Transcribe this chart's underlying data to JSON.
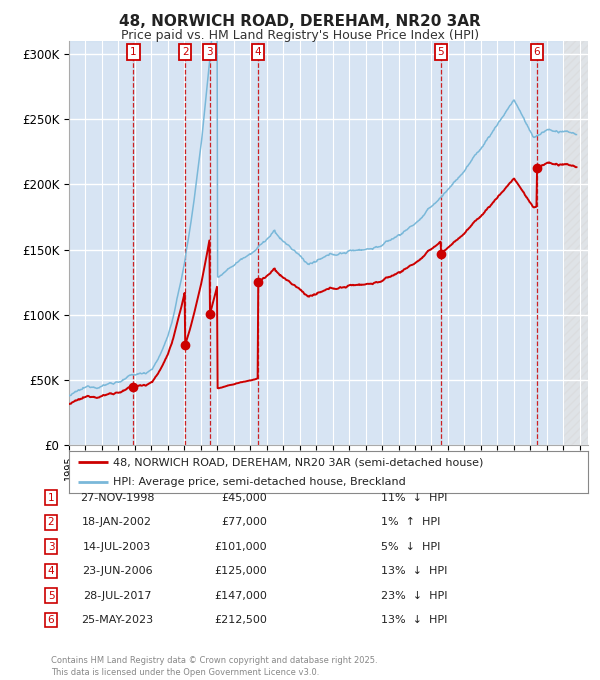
{
  "title": "48, NORWICH ROAD, DEREHAM, NR20 3AR",
  "subtitle": "Price paid vs. HM Land Registry's House Price Index (HPI)",
  "footer": "Contains HM Land Registry data © Crown copyright and database right 2025.\nThis data is licensed under the Open Government Licence v3.0.",
  "legend_line1": "48, NORWICH ROAD, DEREHAM, NR20 3AR (semi-detached house)",
  "legend_line2": "HPI: Average price, semi-detached house, Breckland",
  "hpi_color": "#7ab8d9",
  "price_color": "#cc0000",
  "background_color": "#ffffff",
  "plot_bg_color": "#e8f0f8",
  "grid_color": "#ffffff",
  "vline_color": "#cc0000",
  "vband_color": "#ccddf0",
  "ylim": [
    0,
    310000
  ],
  "yticks": [
    0,
    50000,
    100000,
    150000,
    200000,
    250000,
    300000
  ],
  "ytick_labels": [
    "£0",
    "£50K",
    "£100K",
    "£150K",
    "£200K",
    "£250K",
    "£300K"
  ],
  "xmin": 1995.0,
  "xmax": 2026.5,
  "sales": [
    {
      "num": 1,
      "date": "27-NOV-1998",
      "year": 1998.91,
      "price": 45000,
      "pct": "11%",
      "dir": "↓"
    },
    {
      "num": 2,
      "date": "18-JAN-2002",
      "year": 2002.05,
      "price": 77000,
      "pct": "1%",
      "dir": "↑"
    },
    {
      "num": 3,
      "date": "14-JUL-2003",
      "year": 2003.54,
      "price": 101000,
      "pct": "5%",
      "dir": "↓"
    },
    {
      "num": 4,
      "date": "23-JUN-2006",
      "year": 2006.48,
      "price": 125000,
      "pct": "13%",
      "dir": "↓"
    },
    {
      "num": 5,
      "date": "28-JUL-2017",
      "year": 2017.57,
      "price": 147000,
      "pct": "23%",
      "dir": "↓"
    },
    {
      "num": 6,
      "date": "25-MAY-2023",
      "year": 2023.4,
      "price": 212500,
      "pct": "13%",
      "dir": "↓"
    }
  ]
}
